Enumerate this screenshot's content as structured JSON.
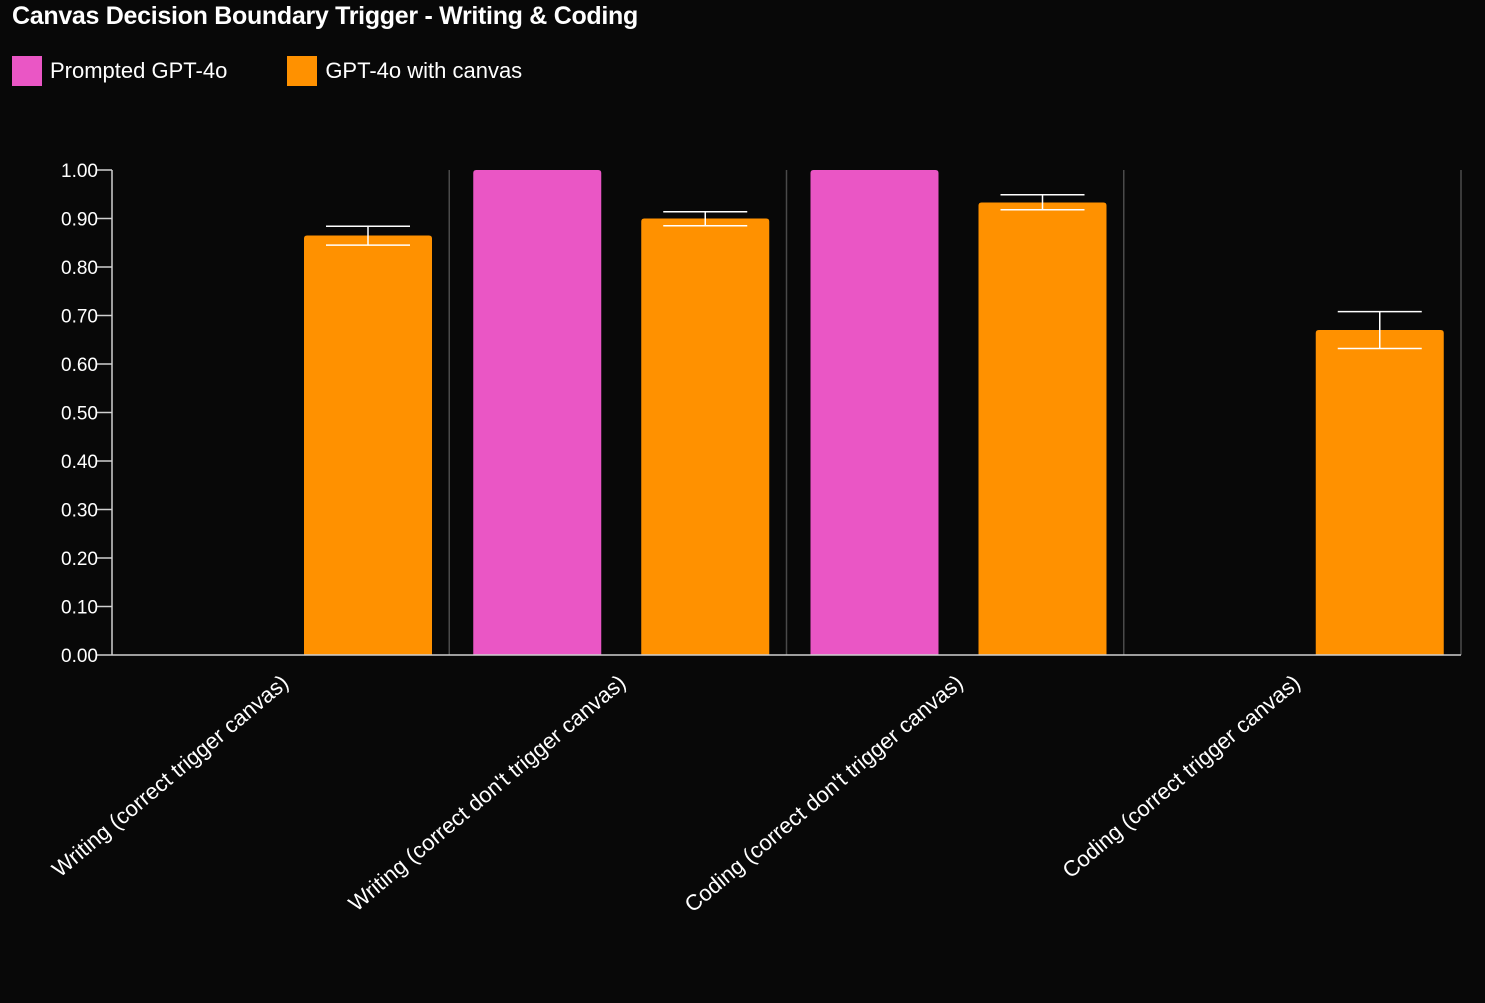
{
  "chart_data": {
    "type": "bar",
    "title": "Canvas Decision Boundary Trigger - Writing & Coding",
    "xlabel": "",
    "ylabel": "",
    "ylim": [
      0,
      1
    ],
    "yticks": [
      "0.00",
      "0.10",
      "0.20",
      "0.30",
      "0.40",
      "0.50",
      "0.60",
      "0.70",
      "0.80",
      "0.90",
      "1.00"
    ],
    "categories": [
      "Writing (correct trigger canvas)",
      "Writing (correct don't trigger canvas)",
      "Coding (correct don't trigger canvas)",
      "Coding (correct trigger canvas)"
    ],
    "series": [
      {
        "name": "Prompted GPT-4o",
        "color": "#ea56c5",
        "values": [
          0,
          1.0,
          1.0,
          0
        ],
        "error_low": [
          null,
          null,
          null,
          null
        ],
        "error_high": [
          null,
          null,
          null,
          null
        ]
      },
      {
        "name": "GPT-4o with canvas",
        "color": "#ff9100",
        "values": [
          0.865,
          0.9,
          0.933,
          0.67
        ],
        "error_low": [
          0.845,
          0.885,
          0.918,
          0.632
        ],
        "error_high": [
          0.884,
          0.914,
          0.949,
          0.708
        ]
      }
    ],
    "legend_position": "top-left",
    "grid": false
  }
}
